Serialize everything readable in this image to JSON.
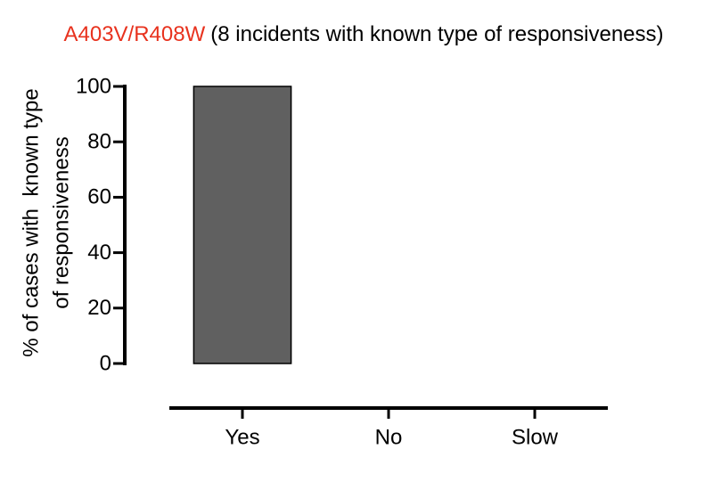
{
  "chart_data": {
    "type": "bar",
    "title": "A403V/R408W",
    "title_color": "#e8321e",
    "subtitle": "(8 incidents with known type of responsiveness)",
    "ylabel": [
      "% of cases with  known type",
      "of responsiveness"
    ],
    "categories": [
      "Yes",
      "No",
      "Slow"
    ],
    "values": [
      100,
      0,
      0
    ],
    "color": "#606060",
    "ylim": [
      0,
      100
    ],
    "yticks": [
      0,
      20,
      40,
      60,
      80,
      100
    ],
    "grid": false
  }
}
